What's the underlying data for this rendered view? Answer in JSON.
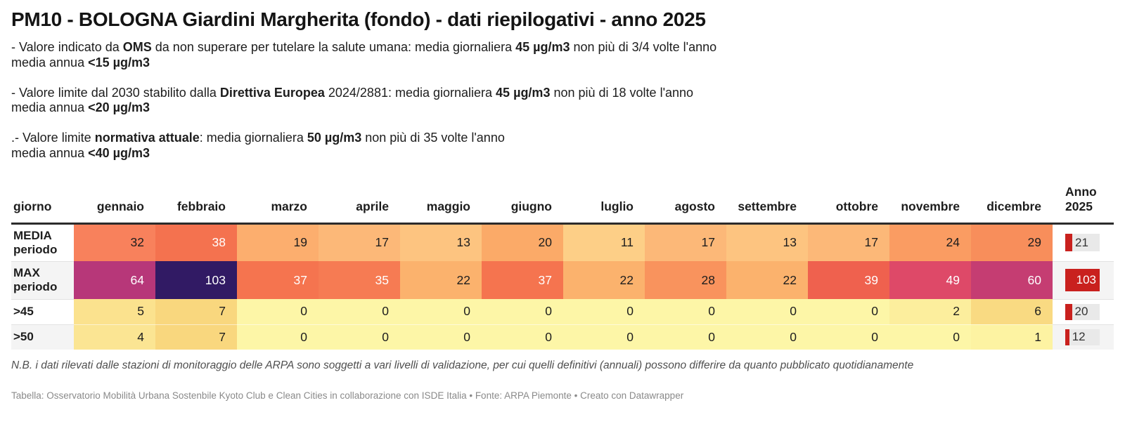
{
  "title": "PM10 - BOLOGNA Giardini Margherita (fondo) - dati riepilogativi - anno 2025",
  "intro_paragraphs": [
    {
      "line1": [
        {
          "t": "- Valore indicato da ",
          "b": false
        },
        {
          "t": "OMS",
          "b": true
        },
        {
          "t": " da non superare per tutelare la salute umana: media giornaliera ",
          "b": false
        },
        {
          "t": "45 µg/m3",
          "b": true
        },
        {
          "t": " non più di 3/4 volte l'anno",
          "b": false
        }
      ],
      "line2": [
        {
          "t": "media annua ",
          "b": false
        },
        {
          "t": "<15 µg/m3",
          "b": true
        }
      ]
    },
    {
      "line1": [
        {
          "t": "- Valore limite dal 2030 stabilito dalla ",
          "b": false
        },
        {
          "t": "Direttiva Europea",
          "b": true
        },
        {
          "t": " 2024/2881: media giornaliera ",
          "b": false
        },
        {
          "t": "45 µg/m3",
          "b": true
        },
        {
          "t": " non più di 18 volte l'anno",
          "b": false
        }
      ],
      "line2": [
        {
          "t": "media annua ",
          "b": false
        },
        {
          "t": "<20 µg/m3",
          "b": true
        }
      ]
    },
    {
      "line1": [
        {
          "t": ".- Valore limite ",
          "b": false
        },
        {
          "t": "normativa attuale",
          "b": true
        },
        {
          "t": ": media giornaliera ",
          "b": false
        },
        {
          "t": "50 µg/m3",
          "b": true
        },
        {
          "t": " non più di 35 volte l'anno",
          "b": false
        }
      ],
      "line2": [
        {
          "t": "media annua ",
          "b": false
        },
        {
          "t": "<40 µg/m3",
          "b": true
        }
      ]
    }
  ],
  "table": {
    "corner_header": "giorno",
    "month_headers": [
      "gennaio",
      "febbraio",
      "marzo",
      "aprile",
      "maggio",
      "giugno",
      "luglio",
      "agosto",
      "settembre",
      "ottobre",
      "novembre",
      "dicembre"
    ],
    "anno_header_lines": [
      "Anno",
      "2025"
    ],
    "bar_color": "#c9211e",
    "bar_track_color": "#e9e9e9",
    "rows": [
      {
        "label_lines": [
          "MEDIA",
          "periodo"
        ],
        "cells": [
          {
            "v": "32",
            "bg": "#f8815c",
            "fg": "#1d1d1d"
          },
          {
            "v": "38",
            "bg": "#f4724f",
            "fg": "#ffffff"
          },
          {
            "v": "19",
            "bg": "#fcae6e",
            "fg": "#1d1d1d"
          },
          {
            "v": "17",
            "bg": "#fcb878",
            "fg": "#1d1d1d"
          },
          {
            "v": "13",
            "bg": "#fdc480",
            "fg": "#1d1d1d"
          },
          {
            "v": "20",
            "bg": "#fbaa68",
            "fg": "#1d1d1d"
          },
          {
            "v": "11",
            "bg": "#fdcf87",
            "fg": "#1d1d1d"
          },
          {
            "v": "17",
            "bg": "#fcb878",
            "fg": "#1d1d1d"
          },
          {
            "v": "13",
            "bg": "#fdc480",
            "fg": "#1d1d1d"
          },
          {
            "v": "17",
            "bg": "#fcb878",
            "fg": "#1d1d1d"
          },
          {
            "v": "24",
            "bg": "#fa9c62",
            "fg": "#1d1d1d"
          },
          {
            "v": "29",
            "bg": "#f88e5b",
            "fg": "#1d1d1d"
          }
        ],
        "anno": {
          "v": "21",
          "pct": 20.4,
          "inside": false
        }
      },
      {
        "label_lines": [
          "MAX",
          "periodo"
        ],
        "cells": [
          {
            "v": "64",
            "bg": "#b73779",
            "fg": "#ffffff"
          },
          {
            "v": "103",
            "bg": "#311a64",
            "fg": "#ffffff"
          },
          {
            "v": "37",
            "bg": "#f5744f",
            "fg": "#ffffff"
          },
          {
            "v": "35",
            "bg": "#f67b53",
            "fg": "#ffffff"
          },
          {
            "v": "22",
            "bg": "#fbb26d",
            "fg": "#1d1d1d"
          },
          {
            "v": "37",
            "bg": "#f5744f",
            "fg": "#ffffff"
          },
          {
            "v": "22",
            "bg": "#fbb26d",
            "fg": "#1d1d1d"
          },
          {
            "v": "28",
            "bg": "#f9935d",
            "fg": "#1d1d1d"
          },
          {
            "v": "22",
            "bg": "#fbb26d",
            "fg": "#1d1d1d"
          },
          {
            "v": "39",
            "bg": "#ef614e",
            "fg": "#ffffff"
          },
          {
            "v": "49",
            "bg": "#de4968",
            "fg": "#ffffff"
          },
          {
            "v": "60",
            "bg": "#c53d72",
            "fg": "#ffffff"
          }
        ],
        "anno": {
          "v": "103",
          "pct": 100,
          "inside": true
        }
      },
      {
        "label_lines": [
          ">45"
        ],
        "cells": [
          {
            "v": "5",
            "bg": "#fbe28e",
            "fg": "#1d1d1d"
          },
          {
            "v": "7",
            "bg": "#f9d77e",
            "fg": "#1d1d1d"
          },
          {
            "v": "0",
            "bg": "#fdf6a7",
            "fg": "#1d1d1d"
          },
          {
            "v": "0",
            "bg": "#fdf6a7",
            "fg": "#1d1d1d"
          },
          {
            "v": "0",
            "bg": "#fdf6a7",
            "fg": "#1d1d1d"
          },
          {
            "v": "0",
            "bg": "#fdf6a7",
            "fg": "#1d1d1d"
          },
          {
            "v": "0",
            "bg": "#fdf6a7",
            "fg": "#1d1d1d"
          },
          {
            "v": "0",
            "bg": "#fdf6a7",
            "fg": "#1d1d1d"
          },
          {
            "v": "0",
            "bg": "#fdf6a7",
            "fg": "#1d1d1d"
          },
          {
            "v": "0",
            "bg": "#fdf6a7",
            "fg": "#1d1d1d"
          },
          {
            "v": "2",
            "bg": "#fcee9d",
            "fg": "#1d1d1d"
          },
          {
            "v": "6",
            "bg": "#f9da82",
            "fg": "#1d1d1d"
          }
        ],
        "anno": {
          "v": "20",
          "pct": 19.4,
          "inside": false
        }
      },
      {
        "label_lines": [
          ">50"
        ],
        "cells": [
          {
            "v": "4",
            "bg": "#fbe593",
            "fg": "#1d1d1d"
          },
          {
            "v": "7",
            "bg": "#f9d77e",
            "fg": "#1d1d1d"
          },
          {
            "v": "0",
            "bg": "#fdf6a7",
            "fg": "#1d1d1d"
          },
          {
            "v": "0",
            "bg": "#fdf6a7",
            "fg": "#1d1d1d"
          },
          {
            "v": "0",
            "bg": "#fdf6a7",
            "fg": "#1d1d1d"
          },
          {
            "v": "0",
            "bg": "#fdf6a7",
            "fg": "#1d1d1d"
          },
          {
            "v": "0",
            "bg": "#fdf6a7",
            "fg": "#1d1d1d"
          },
          {
            "v": "0",
            "bg": "#fdf6a7",
            "fg": "#1d1d1d"
          },
          {
            "v": "0",
            "bg": "#fdf6a7",
            "fg": "#1d1d1d"
          },
          {
            "v": "0",
            "bg": "#fdf6a7",
            "fg": "#1d1d1d"
          },
          {
            "v": "0",
            "bg": "#fdf6a7",
            "fg": "#1d1d1d"
          },
          {
            "v": "1",
            "bg": "#fdf3a2",
            "fg": "#1d1d1d"
          }
        ],
        "anno": {
          "v": "12",
          "pct": 11.7,
          "inside": false
        }
      }
    ]
  },
  "note": "N.B. i dati rilevati dalle stazioni di monitoraggio delle ARPA sono soggetti a vari livelli di validazione, per cui quelli definitivi (annuali) possono differire da quanto pubblicato quotidianamente",
  "footer": "Tabella: Osservatorio Mobilità Urbana Sostenbile Kyoto Club e Clean Cities in collaborazione con ISDE Italia • Fonte: ARPA Piemonte • Creato con Datawrapper",
  "chart_data": {
    "type": "table",
    "title": "PM10 - BOLOGNA Giardini Margherita (fondo) - dati riepilogativi - anno 2025",
    "unit": "µg/m3",
    "columns": [
      "giorno",
      "gennaio",
      "febbraio",
      "marzo",
      "aprile",
      "maggio",
      "giugno",
      "luglio",
      "agosto",
      "settembre",
      "ottobre",
      "novembre",
      "dicembre",
      "Anno 2025"
    ],
    "rows": [
      {
        "label": "MEDIA periodo",
        "values": [
          32,
          38,
          19,
          17,
          13,
          20,
          11,
          17,
          13,
          17,
          24,
          29
        ],
        "anno_2025": 21
      },
      {
        "label": "MAX periodo",
        "values": [
          64,
          103,
          37,
          35,
          22,
          37,
          22,
          28,
          22,
          39,
          49,
          60
        ],
        "anno_2025": 103
      },
      {
        "label": ">45",
        "values": [
          5,
          7,
          0,
          0,
          0,
          0,
          0,
          0,
          0,
          0,
          2,
          6
        ],
        "anno_2025": 20
      },
      {
        "label": ">50",
        "values": [
          4,
          7,
          0,
          0,
          0,
          0,
          0,
          0,
          0,
          0,
          0,
          1
        ],
        "anno_2025": 12
      }
    ],
    "heatmap_palette": "yellow-orange-red-purple (low to high)",
    "anno_column_style": "red bar chart, scaled to max 103",
    "legend_position": "none",
    "grid": false
  }
}
